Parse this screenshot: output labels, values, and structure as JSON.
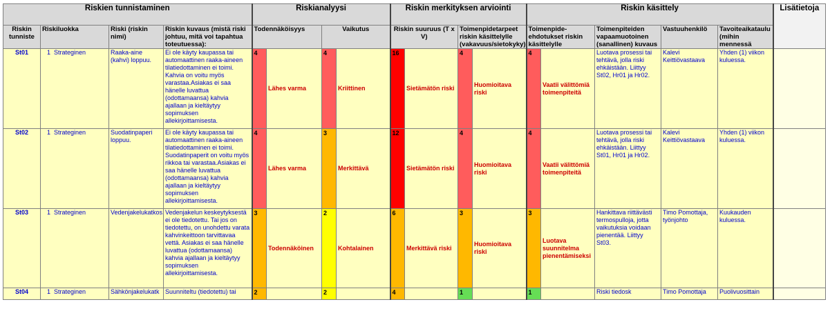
{
  "groups": {
    "tunnistaminen": "Riskien tunnistaminen",
    "analyysi": "Riskianalyysi",
    "arviointi": "Riskin merkityksen arviointi",
    "kasittely": "Riskin käsittely",
    "lisatietoja": "Lisätietoja"
  },
  "headers": {
    "tunniste": "Riskin tunniste",
    "riskiluokka": "Riskiluokka",
    "riski": "Riski (riskin nimi)",
    "kuvaus": "Riskin kuvaus (mistä riski johtuu, mitä voi tapahtua toteutuessa):",
    "todennakoisyys": "Todennäköisyys",
    "vaikutus": "Vaikutus",
    "suuruus": "Riskin suuruus (T x V)",
    "toimenpidetarpeet": "Toimenpidetarpeet riskin käsittelylle (vakavuus/sietokyky)",
    "ehdotukset": "Toimenpide-ehdotukset riskin käsittelylle",
    "vapaamuotoinen": "Toimenpiteiden vapaamuotoinen (sanallinen) kuvaus",
    "vastuuhenkilo": "Vastuuhenkilö",
    "tavoiteaikataulu": "Tavoiteaikataulu (mihin mennessä"
  },
  "rows": [
    {
      "id": "St01",
      "num": "1",
      "class": "Strateginen",
      "risk": "Raaka-aine (kahvi) loppuu.",
      "desc": "Ei ole käyty kaupassa tai automaattinen raaka-aineen tilatiedottaminen ei toimi. Kahvia on voitu myös varastaa.Asiakas ei saa hänelle luvattua (odottamaansa) kahvia ajallaan ja kieltäytyy sopimuksen allekirjoittamisesta.",
      "t_score": "4",
      "t_label": "Lähes varma",
      "v_score": "4",
      "v_label": "Kriittinen",
      "s_score": "16",
      "s_label": "Sietämätön riski",
      "tp_score": "4",
      "tp_label": "Huomioitava riski",
      "e_score": "4",
      "e_label": "Vaatii välittömiä toimenpiteitä",
      "action": "Luotava prosessi tai tehtävä, jolla riski ehkäistään. Liittyy St02, Hr01 ja Hr02.",
      "owner": "Kalevi Keittiövastaava",
      "schedule": "Yhden (1) viikon kuluessa.",
      "extra": ""
    },
    {
      "id": "St02",
      "num": "1",
      "class": "Strateginen",
      "risk": "Suodatinpaperi loppuu.",
      "desc": "Ei ole käyty kaupassa tai automaattinen raaka-aineen tilatiedottaminen ei toimi. Suodatinpaperit on voitu myös rikkoa tai varastaa.Asiakas ei saa hänelle luvattua (odottamaansa) kahvia ajallaan ja kieltäytyy sopimuksen allekirjoittamisesta.",
      "t_score": "4",
      "t_label": "Lähes varma",
      "v_score": "3",
      "v_label": "Merkittävä",
      "s_score": "12",
      "s_label": "Sietämätön riski",
      "tp_score": "4",
      "tp_label": "Huomioitava riski",
      "e_score": "4",
      "e_label": "Vaatii välittömiä toimenpiteitä",
      "action": "Luotava prosessi tai tehtävä, jolla riski ehkäistään. Liittyy St01, Hr01 ja Hr02.",
      "owner": "Kalevi Keittiövastaava",
      "schedule": "Yhden (1) viikon kuluessa.",
      "extra": ""
    },
    {
      "id": "St03",
      "num": "1",
      "class": "Strateginen",
      "risk": "Vedenjakelukatkos.",
      "desc": "Vedenjakelun keskeytyksestä ei ole tiedotettu. Tai jos on tiedotettu, on unohdettu varata kahvinkeittoon tarvittavaa vettä. Asiakas ei saa hänelle luvattua (odottamaansa) kahvia ajallaan ja kieltäytyy sopimuksen allekirjoittamisesta.",
      "t_score": "3",
      "t_label": "Todennäköinen",
      "v_score": "2",
      "v_label": "Kohtalainen",
      "s_score": "6",
      "s_label": "Merkittävä riski",
      "tp_score": "3",
      "tp_label": "Huomioitava riski",
      "e_score": "3",
      "e_label": "Luotava suunnitelma pienentämiseksi",
      "action": "Hankittava riittävästi termospulloja, jotta vaikutuksia voidaan pienentää. Liittyy St03.",
      "owner": "Timo Pomottaja, työnjohto",
      "schedule": "Kuukauden kuluessa.",
      "extra": ""
    },
    {
      "id": "St04",
      "num": "1",
      "class": "Strateginen",
      "risk": "Sähkönjakelukatk",
      "desc": "Suunniteltu (tiedotettu) tai",
      "t_score": "2",
      "t_label": "",
      "v_score": "2",
      "v_label": "",
      "s_score": "4",
      "s_label": "",
      "tp_score": "1",
      "tp_label": "",
      "e_score": "1",
      "e_label": "",
      "action": "Riski tiedosk",
      "owner": "Timo Pomottaja",
      "schedule": "Puolivuosittain",
      "extra": ""
    }
  ],
  "colors": {
    "header_gray": "#d9d9d9",
    "row_yellow": "#ffffc0",
    "score_red": "#ff5c5c",
    "score_bright_red": "#ff0000",
    "score_orange": "#ffb800",
    "score_yellow": "#ffff00",
    "score_green": "#66dd55",
    "text_blue": "#0000cc",
    "label_red": "#cc0000"
  }
}
